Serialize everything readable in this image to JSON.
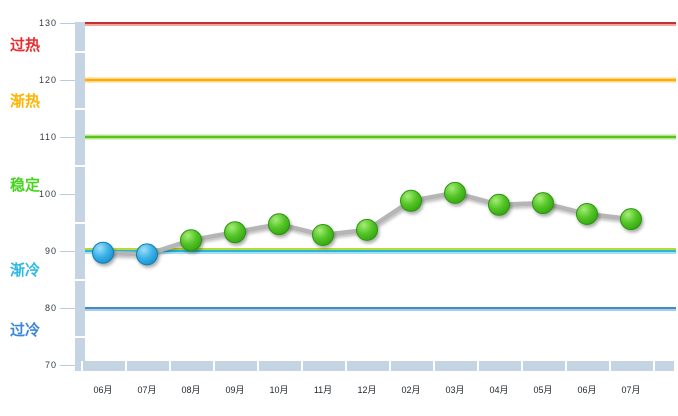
{
  "chart_data": {
    "type": "line",
    "title": "",
    "xlabel": "",
    "ylabel": "",
    "categories": [
      "06月",
      "07月",
      "08月",
      "09月",
      "10月",
      "11月",
      "12月",
      "02月",
      "03月",
      "04月",
      "05月",
      "06月",
      "07月"
    ],
    "series": [
      {
        "values": [
          89.7,
          89.4,
          91.9,
          93.3,
          94.7,
          92.8,
          93.7,
          98.8,
          100.2,
          98.1,
          98.4,
          96.5,
          95.6
        ],
        "point_colors": [
          "blue",
          "blue",
          "green",
          "green",
          "green",
          "green",
          "green",
          "green",
          "green",
          "green",
          "green",
          "green",
          "green"
        ]
      }
    ],
    "ylim": [
      70,
      130
    ],
    "y_ticks": [
      130,
      120,
      110,
      100,
      90,
      80,
      70
    ],
    "grid": false,
    "legend": "none",
    "threshold_lines": [
      130,
      120,
      110,
      90,
      80
    ],
    "zone_bands": [
      {
        "label": "过热",
        "range": [
          120,
          130
        ]
      },
      {
        "label": "渐热",
        "range": [
          110,
          120
        ]
      },
      {
        "label": "稳定",
        "range": [
          90,
          110
        ]
      },
      {
        "label": "渐冷",
        "range": [
          80,
          90
        ]
      },
      {
        "label": "过冷",
        "range": [
          70,
          80
        ]
      }
    ]
  },
  "chart": {
    "zones": [
      {
        "label": "过热",
        "color": "#e62e2e",
        "anchor_value": 126.2
      },
      {
        "label": "渐热",
        "color": "#ffb400",
        "anchor_value": 116.4
      },
      {
        "label": "稳定",
        "color": "#46d41f",
        "anchor_value": 101.5
      },
      {
        "label": "渐冷",
        "color": "#2fb9e4",
        "anchor_value": 86.6
      },
      {
        "label": "过冷",
        "color": "#3a86d8",
        "anchor_value": 76.2
      }
    ],
    "plot_lines": [
      {
        "value": 130,
        "color": "#c6312e",
        "glow": "#f0a79e",
        "side": "below"
      },
      {
        "value": 120,
        "color": "#ffab00",
        "glow": "#ffd685",
        "side": "both"
      },
      {
        "value": 110,
        "color": "#58c41a",
        "glow": "#b4e58d",
        "side": "both"
      },
      {
        "value": 90.42,
        "color": "#b6da37",
        "glow": null,
        "side": "none"
      },
      {
        "value": 90,
        "color": "#2db5da",
        "glow": "#a3dff0",
        "side": "below"
      },
      {
        "value": 80,
        "color": "#3f8cc6",
        "glow": "#a9cbe8",
        "side": "below"
      }
    ],
    "y_axis": {
      "ticks": [
        130,
        120,
        110,
        100,
        90,
        80,
        70
      ],
      "minor_gap_values": [
        125,
        115,
        105,
        95,
        85,
        75
      ],
      "band_color": "#c5d4e3",
      "tick_color": "#b9cbdd",
      "label_color": "#333a45"
    },
    "x_axis": {
      "categories": [
        "06月",
        "07月",
        "08月",
        "09月",
        "10月",
        "11月",
        "12月",
        "02月",
        "03月",
        "04月",
        "05月",
        "06月",
        "07月"
      ],
      "label_color": "#222831"
    },
    "series_style": {
      "line_color": "#b5b5b5",
      "marker_blue_stroke": "#0d7bb0",
      "marker_green_stroke": "#2b940c"
    }
  }
}
